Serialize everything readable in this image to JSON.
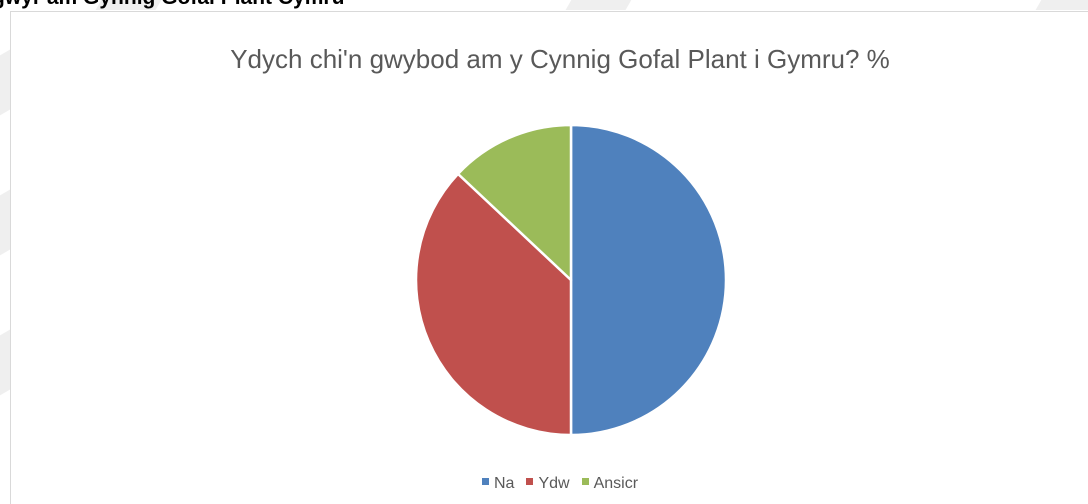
{
  "page": {
    "heading": "gwyr am Gynnig Gofal Plant Cymru"
  },
  "chart_data": {
    "type": "pie",
    "title": "Ydych chi'n gwybod am y Cynnig Gofal Plant i Gymru? %",
    "categories": [
      "Na",
      "Ydw",
      "Ansicr"
    ],
    "values": [
      50,
      37,
      13
    ],
    "colors": [
      "#4f81bd",
      "#c0504d",
      "#9bbb59"
    ],
    "start_angle_deg": 0,
    "direction": "clockwise",
    "legend_position": "bottom"
  }
}
